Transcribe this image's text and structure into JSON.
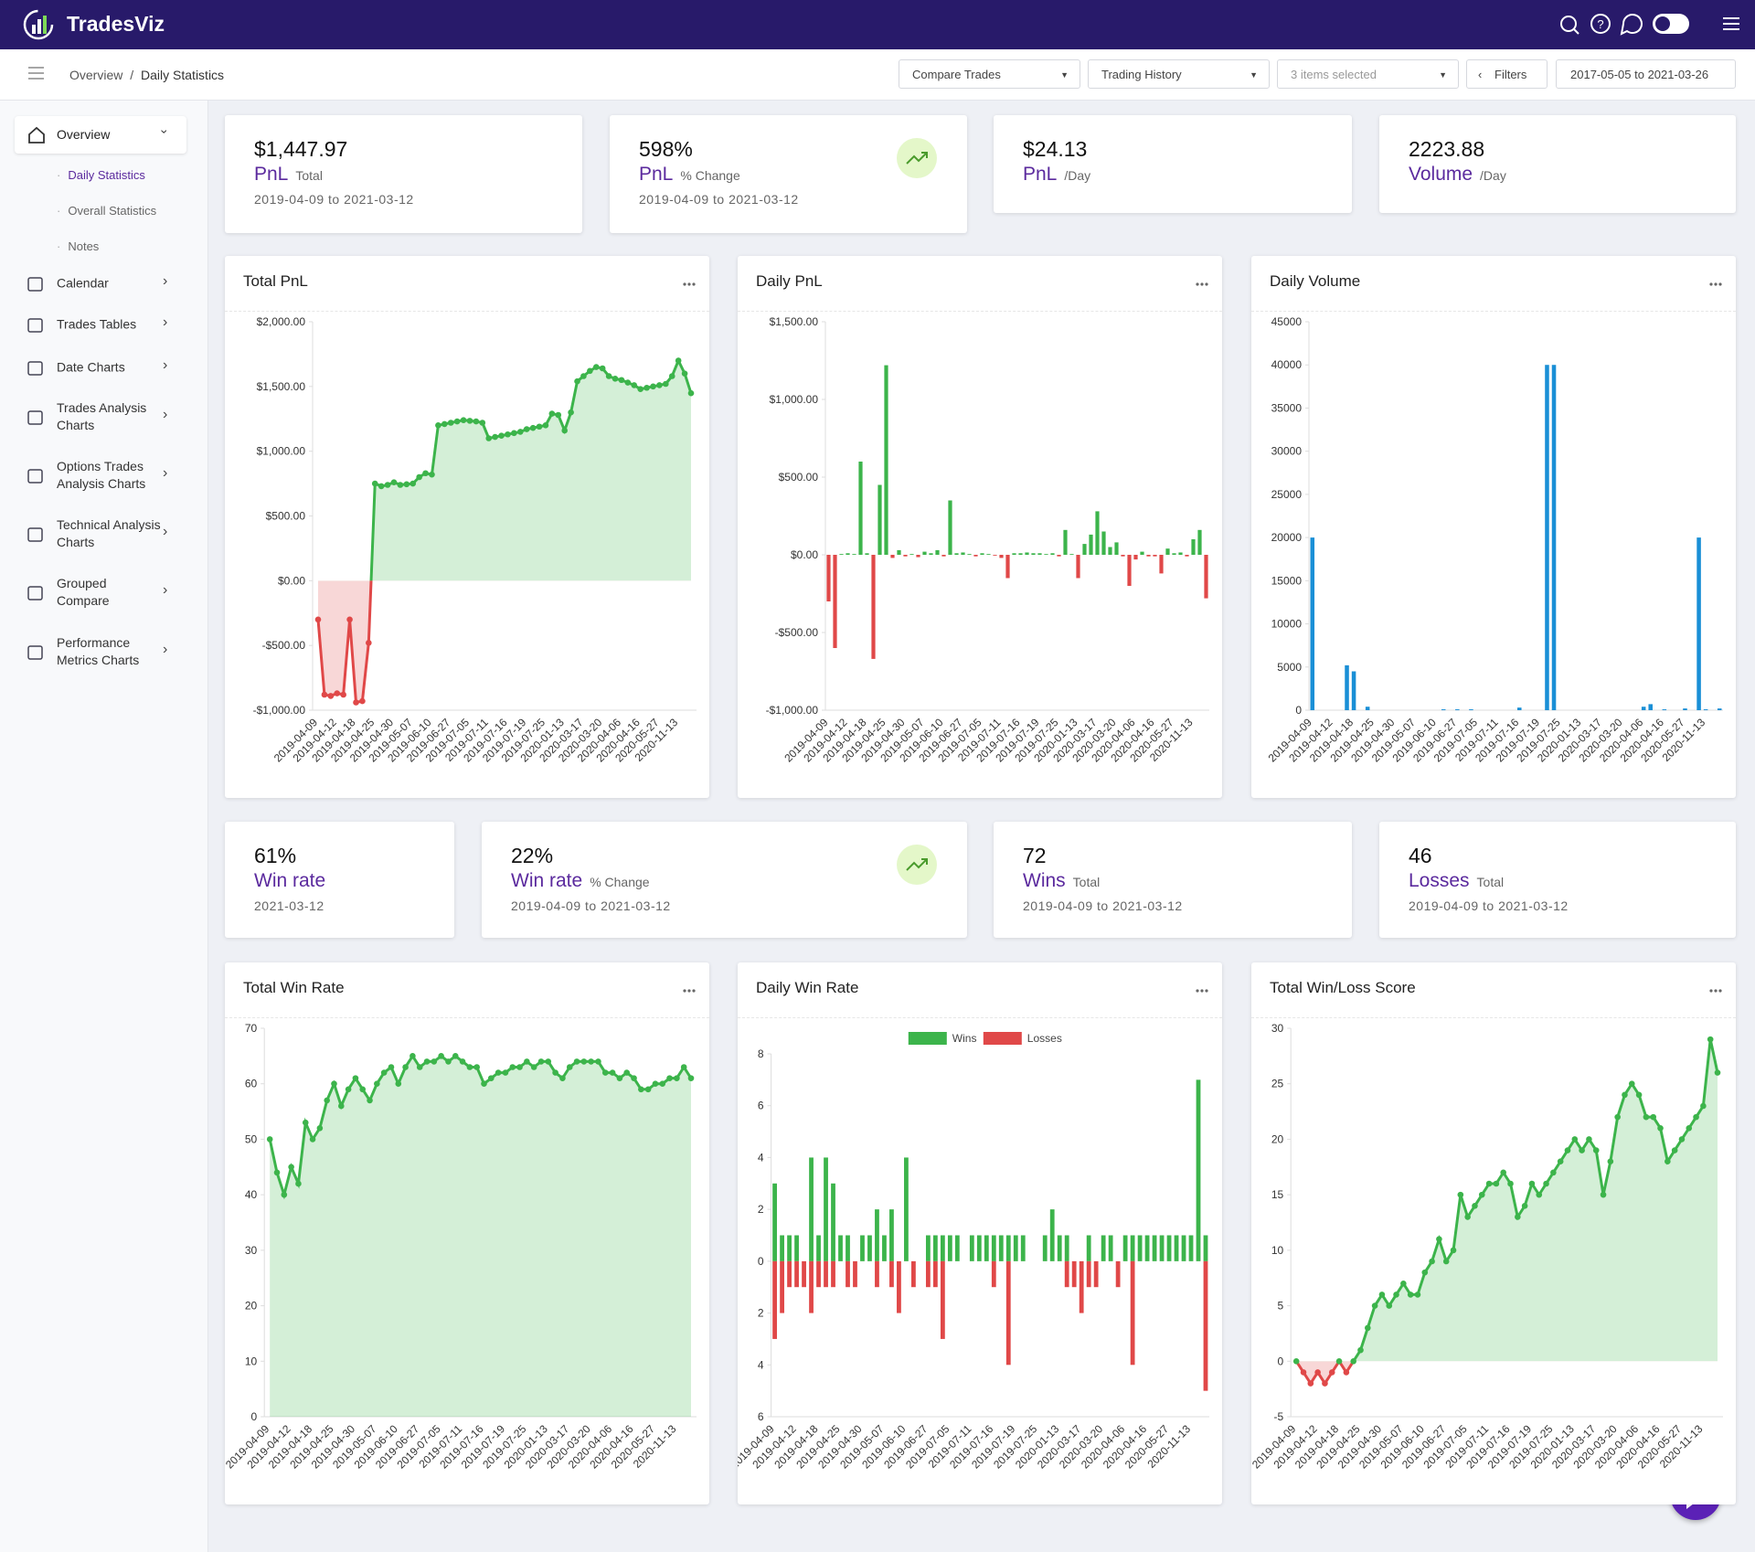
{
  "header": {
    "brand": "TradesViz"
  },
  "breadcrumb": {
    "root": "Overview",
    "sep": "/",
    "current": "Daily Statistics"
  },
  "toolbar": {
    "compare": "Compare Trades",
    "history": "Trading History",
    "selected": "3 items selected",
    "filters": "Filters",
    "range": "2017-05-05 to 2021-03-26"
  },
  "sidebar": {
    "active": "Overview",
    "subitems": [
      "Daily Statistics",
      "Overall Statistics",
      "Notes"
    ],
    "items": [
      "Calendar",
      "Trades Tables",
      "Date Charts",
      "Trades Analysis Charts",
      "Options Trades Analysis Charts",
      "Technical Analysis Charts",
      "Grouped Compare",
      "Performance Metrics Charts"
    ]
  },
  "cards": [
    {
      "value": "$1,447.97",
      "label": "PnL",
      "unit": "Total",
      "period": "2019-04-09 to 2021-03-12"
    },
    {
      "value": "598%",
      "label": "PnL",
      "unit": "% Change",
      "period": "2019-04-09 to 2021-03-12",
      "trend": true
    },
    {
      "value": "$24.13",
      "label": "PnL",
      "unit": "/Day"
    },
    {
      "value": "2223.88",
      "label": "Volume",
      "unit": "/Day"
    },
    {
      "value": "61%",
      "label": "Win rate",
      "period": "2021-03-12"
    },
    {
      "value": "22%",
      "label": "Win rate",
      "unit": "% Change",
      "period": "2019-04-09 to 2021-03-12",
      "trend": true
    },
    {
      "value": "72",
      "label": "Wins",
      "unit": "Total",
      "period": "2019-04-09 to 2021-03-12"
    },
    {
      "value": "46",
      "label": "Losses",
      "unit": "Total",
      "period": "2019-04-09 to 2021-03-12"
    }
  ],
  "chart_data": [
    {
      "type": "line",
      "title": "Total PnL",
      "color": "#3cb44b",
      "negative_color": "#e04848",
      "grid": false,
      "categories": [
        "2019-04-09",
        null,
        null,
        "2019-04-12",
        null,
        null,
        "2019-04-18",
        null,
        null,
        "2019-04-25",
        null,
        null,
        "2019-04-30",
        null,
        null,
        "2019-05-07",
        null,
        null,
        "2019-06-10",
        null,
        null,
        "2019-06-27",
        null,
        null,
        "2019-07-05",
        null,
        null,
        "2019-07-11",
        null,
        null,
        "2019-07-16",
        null,
        null,
        "2019-07-19",
        null,
        null,
        "2019-07-25",
        null,
        null,
        "2020-01-13",
        null,
        null,
        "2020-03-17",
        null,
        null,
        "2020-03-20",
        null,
        null,
        "2020-04-06",
        null,
        null,
        "2020-04-16",
        null,
        null,
        "2020-05-27",
        null,
        null,
        "2020-11-13",
        null,
        null
      ],
      "values": [
        -300,
        -880,
        -890,
        -870,
        -880,
        -300,
        -940,
        -930,
        -480,
        750,
        730,
        740,
        760,
        740,
        745,
        750,
        800,
        830,
        820,
        1200,
        1210,
        1220,
        1230,
        1240,
        1235,
        1230,
        1220,
        1100,
        1110,
        1120,
        1130,
        1140,
        1150,
        1170,
        1180,
        1190,
        1200,
        1290,
        1280,
        1160,
        1300,
        1540,
        1580,
        1620,
        1650,
        1640,
        1580,
        1560,
        1550,
        1530,
        1510,
        1480,
        1490,
        1500,
        1510,
        1520,
        1580,
        1700,
        1600,
        1447.97
      ],
      "ylim": [
        -1000,
        2000
      ],
      "yticks": [
        {
          "value": -1000,
          "label": "-$1,000.00"
        },
        {
          "value": -500,
          "label": "-$500.00"
        },
        {
          "value": 0,
          "label": "$0.00"
        },
        {
          "value": 500,
          "label": "$500.00"
        },
        {
          "value": 1000,
          "label": "$1,000.00"
        },
        {
          "value": 1500,
          "label": "$1,500.00"
        },
        {
          "value": 2000,
          "label": "$2,000.00"
        }
      ]
    },
    {
      "type": "bar",
      "title": "Daily PnL",
      "color": "#3cb44b",
      "negative_color": "#e04848",
      "grid": false,
      "categories": [
        "2019-04-09",
        null,
        null,
        "2019-04-12",
        null,
        null,
        "2019-04-18",
        null,
        null,
        "2019-04-25",
        null,
        null,
        "2019-04-30",
        null,
        null,
        "2019-05-07",
        null,
        null,
        "2019-06-10",
        null,
        null,
        "2019-06-27",
        null,
        null,
        "2019-07-05",
        null,
        null,
        "2019-07-11",
        null,
        null,
        "2019-07-16",
        null,
        null,
        "2019-07-19",
        null,
        null,
        "2019-07-25",
        null,
        null,
        "2020-01-13",
        null,
        null,
        "2020-03-17",
        null,
        null,
        "2020-03-20",
        null,
        null,
        "2020-04-06",
        null,
        null,
        "2020-04-16",
        null,
        null,
        "2020-05-27",
        null,
        null,
        "2020-11-13",
        null,
        null
      ],
      "values": [
        -300,
        -600,
        5,
        10,
        5,
        600,
        10,
        -670,
        450,
        1220,
        -20,
        30,
        -10,
        5,
        -15,
        20,
        10,
        30,
        -10,
        350,
        10,
        15,
        5,
        -10,
        10,
        5,
        -5,
        -20,
        -150,
        10,
        10,
        15,
        10,
        10,
        5,
        10,
        -10,
        160,
        5,
        -150,
        70,
        130,
        280,
        150,
        50,
        80,
        -10,
        -200,
        -30,
        20,
        -10,
        -10,
        -120,
        40,
        10,
        15,
        -10,
        100,
        160,
        -280
      ],
      "ylim": [
        -1000,
        1500
      ],
      "yticks": [
        {
          "value": -1000,
          "label": "-$1,000.00"
        },
        {
          "value": -500,
          "label": "-$500.00"
        },
        {
          "value": 0,
          "label": "$0.00"
        },
        {
          "value": 500,
          "label": "$500.00"
        },
        {
          "value": 1000,
          "label": "$1,000.00"
        },
        {
          "value": 1500,
          "label": "$1,500.00"
        }
      ]
    },
    {
      "type": "bar",
      "title": "Daily Volume",
      "color": "#1a8fd6",
      "grid": false,
      "categories": [
        "2019-04-09",
        null,
        null,
        "2019-04-12",
        null,
        null,
        "2019-04-18",
        null,
        null,
        "2019-04-25",
        null,
        null,
        "2019-04-30",
        null,
        null,
        "2019-05-07",
        null,
        null,
        "2019-06-10",
        null,
        null,
        "2019-06-27",
        null,
        null,
        "2019-07-05",
        null,
        null,
        "2019-07-11",
        null,
        null,
        "2019-07-16",
        null,
        null,
        "2019-07-19",
        null,
        null,
        "2019-07-25",
        null,
        null,
        "2020-01-13",
        null,
        null,
        "2020-03-17",
        null,
        null,
        "2020-03-20",
        null,
        null,
        "2020-04-06",
        null,
        null,
        "2020-04-16",
        null,
        null,
        "2020-05-27",
        null,
        null,
        "2020-11-13",
        null,
        null
      ],
      "values": [
        20000,
        0,
        0,
        0,
        0,
        5200,
        4500,
        0,
        400,
        0,
        0,
        0,
        0,
        0,
        0,
        0,
        0,
        0,
        0,
        100,
        0,
        100,
        0,
        100,
        0,
        0,
        0,
        0,
        0,
        0,
        300,
        0,
        0,
        0,
        40000,
        40000,
        0,
        0,
        0,
        0,
        0,
        0,
        0,
        0,
        0,
        0,
        0,
        0,
        400,
        700,
        0,
        100,
        0,
        0,
        200,
        0,
        20000,
        100,
        0,
        200
      ],
      "ylim": [
        0,
        45000
      ],
      "yticks": [
        0,
        5000,
        10000,
        15000,
        20000,
        25000,
        30000,
        35000,
        40000,
        45000
      ]
    },
    {
      "type": "line",
      "title": "Total Win Rate",
      "color": "#3cb44b",
      "grid": false,
      "categories": [
        "2019-04-09",
        null,
        null,
        "2019-04-12",
        null,
        null,
        "2019-04-18",
        null,
        null,
        "2019-04-25",
        null,
        null,
        "2019-04-30",
        null,
        null,
        "2019-05-07",
        null,
        null,
        "2019-06-10",
        null,
        null,
        "2019-06-27",
        null,
        null,
        "2019-07-05",
        null,
        null,
        "2019-07-11",
        null,
        null,
        "2019-07-16",
        null,
        null,
        "2019-07-19",
        null,
        null,
        "2019-07-25",
        null,
        null,
        "2020-01-13",
        null,
        null,
        "2020-03-17",
        null,
        null,
        "2020-03-20",
        null,
        null,
        "2020-04-06",
        null,
        null,
        "2020-04-16",
        null,
        null,
        "2020-05-27",
        null,
        null,
        "2020-11-13",
        null,
        null
      ],
      "values": [
        50,
        44,
        40,
        45,
        42,
        53,
        50,
        52,
        57,
        60,
        56,
        59,
        61,
        59,
        57,
        60,
        62,
        63,
        60,
        63,
        65,
        63,
        64,
        64,
        65,
        64,
        65,
        64,
        63,
        63,
        60,
        61,
        62,
        62,
        63,
        63,
        64,
        63,
        64,
        64,
        62,
        61,
        63,
        64,
        64,
        64,
        64,
        62,
        62,
        61,
        62,
        61,
        59,
        59,
        60,
        60,
        61,
        61,
        63,
        61
      ],
      "ylim": [
        0,
        70
      ],
      "yticks": [
        0,
        10,
        20,
        30,
        40,
        50,
        60,
        70
      ]
    },
    {
      "type": "bar",
      "title": "Daily Win Rate",
      "grid": false,
      "legend": "top",
      "categories": [
        "2019-04-09",
        null,
        null,
        "2019-04-12",
        null,
        null,
        "2019-04-18",
        null,
        null,
        "2019-04-25",
        null,
        null,
        "2019-04-30",
        null,
        null,
        "2019-05-07",
        null,
        null,
        "2019-06-10",
        null,
        null,
        "2019-06-27",
        null,
        null,
        "2019-07-05",
        null,
        null,
        "2019-07-11",
        null,
        null,
        "2019-07-16",
        null,
        null,
        "2019-07-19",
        null,
        null,
        "2019-07-25",
        null,
        null,
        "2020-01-13",
        null,
        null,
        "2020-03-17",
        null,
        null,
        "2020-03-20",
        null,
        null,
        "2020-04-06",
        null,
        null,
        "2020-04-16",
        null,
        null,
        "2020-05-27",
        null,
        null,
        "2020-11-13",
        null,
        null
      ],
      "series": [
        {
          "name": "Wins",
          "color": "#3cb44b",
          "values": [
            3,
            1,
            1,
            1,
            0,
            4,
            1,
            4,
            3,
            1,
            1,
            0,
            1,
            1,
            2,
            1,
            2,
            0,
            4,
            0,
            0,
            1,
            1,
            1,
            1,
            1,
            0,
            1,
            1,
            1,
            1,
            1,
            1,
            1,
            1,
            0,
            0,
            1,
            2,
            1,
            1,
            0,
            0,
            1,
            0,
            1,
            1,
            0,
            1,
            1,
            1,
            1,
            1,
            1,
            1,
            1,
            1,
            1,
            7,
            1
          ]
        },
        {
          "name": "Losses",
          "color": "#e04848",
          "values": [
            -3,
            -2,
            -1,
            -1,
            -1,
            -2,
            -1,
            -1,
            -1,
            0,
            -1,
            -1,
            0,
            0,
            -1,
            0,
            -1,
            -2,
            0,
            -1,
            0,
            -1,
            -1,
            -3,
            0,
            0,
            0,
            0,
            0,
            0,
            -1,
            0,
            -4,
            0,
            0,
            0,
            0,
            0,
            0,
            0,
            -1,
            -1,
            -2,
            -1,
            -1,
            0,
            0,
            -1,
            0,
            -4,
            0,
            0,
            0,
            0,
            0,
            0,
            0,
            0,
            0,
            -5
          ]
        }
      ],
      "ylim": [
        -6,
        8
      ],
      "yticks": [
        {
          "value": -6,
          "label": "6"
        },
        {
          "value": -4,
          "label": "4"
        },
        {
          "value": -2,
          "label": "2"
        },
        0,
        2,
        4,
        6,
        8
      ]
    },
    {
      "type": "line",
      "title": "Total Win/Loss Score",
      "color": "#3cb44b",
      "negative_color": "#e04848",
      "grid": false,
      "categories": [
        "2019-04-09",
        null,
        null,
        "2019-04-12",
        null,
        null,
        "2019-04-18",
        null,
        null,
        "2019-04-25",
        null,
        null,
        "2019-04-30",
        null,
        null,
        "2019-05-07",
        null,
        null,
        "2019-06-10",
        null,
        null,
        "2019-06-27",
        null,
        null,
        "2019-07-05",
        null,
        null,
        "2019-07-11",
        null,
        null,
        "2019-07-16",
        null,
        null,
        "2019-07-19",
        null,
        null,
        "2019-07-25",
        null,
        null,
        "2020-01-13",
        null,
        null,
        "2020-03-17",
        null,
        null,
        "2020-03-20",
        null,
        null,
        "2020-04-06",
        null,
        null,
        "2020-04-16",
        null,
        null,
        "2020-05-27",
        null,
        null,
        "2020-11-13",
        null,
        null
      ],
      "values": [
        0,
        -1,
        -2,
        -1,
        -2,
        -1,
        0,
        -1,
        0,
        1,
        3,
        5,
        6,
        5,
        6,
        7,
        6,
        6,
        8,
        9,
        11,
        9,
        10,
        15,
        13,
        14,
        15,
        16,
        16,
        17,
        16,
        13,
        14,
        16,
        15,
        16,
        17,
        18,
        19,
        20,
        19,
        20,
        19,
        15,
        18,
        22,
        24,
        25,
        24,
        22,
        22,
        21,
        18,
        19,
        20,
        21,
        22,
        23,
        29,
        26
      ],
      "ylim": [
        -5,
        30
      ],
      "yticks": [
        -5,
        0,
        5,
        10,
        15,
        20,
        25,
        30
      ]
    }
  ]
}
